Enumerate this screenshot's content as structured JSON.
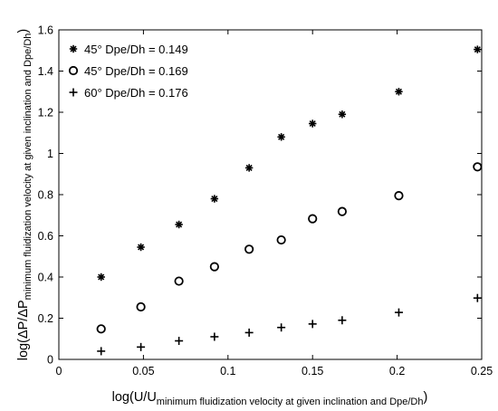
{
  "chart_data": {
    "type": "scatter",
    "xlabel": {
      "main": "log(U/U",
      "sub": "minimum fluidization velocity at given inclination and Dpe/Dh",
      "close": ")"
    },
    "ylabel": {
      "main": "log(ΔP/ΔP",
      "sub": "minimum fluidization velocity at given inclination and Dpe/Dh",
      "close": ")"
    },
    "xlim": [
      0,
      0.25
    ],
    "ylim": [
      0,
      1.6
    ],
    "xticks": [
      0,
      0.05,
      0.1,
      0.15,
      0.2,
      0.25
    ],
    "xtick_labels": [
      "0",
      "0.05",
      "0.1",
      "0.15",
      "0.2",
      "0.25"
    ],
    "yticks": [
      0,
      0.2,
      0.4,
      0.6,
      0.8,
      1,
      1.2,
      1.4,
      1.6
    ],
    "ytick_labels": [
      "0",
      "0.2",
      "0.4",
      "0.6",
      "0.8",
      "1",
      "1.2",
      "1.4",
      "1.6"
    ],
    "grid": false,
    "legend_position": "top-left",
    "series": [
      {
        "name": "45° Dpe/Dh = 0.149",
        "marker": "asterisk",
        "color": "#000000",
        "x": [
          0.025,
          0.0485,
          0.071,
          0.092,
          0.1125,
          0.1315,
          0.15,
          0.1675,
          0.201,
          0.2475
        ],
        "y": [
          0.4,
          0.545,
          0.655,
          0.78,
          0.93,
          1.08,
          1.145,
          1.19,
          1.3,
          1.505
        ]
      },
      {
        "name": "45° Dpe/Dh = 0.169",
        "marker": "open-circle",
        "color": "#000000",
        "x": [
          0.025,
          0.0485,
          0.071,
          0.092,
          0.1125,
          0.1315,
          0.15,
          0.1675,
          0.201,
          0.2475
        ],
        "y": [
          0.148,
          0.255,
          0.38,
          0.45,
          0.535,
          0.58,
          0.683,
          0.718,
          0.795,
          0.935
        ]
      },
      {
        "name": "60° Dpe/Dh = 0.176",
        "marker": "plus",
        "color": "#000000",
        "x": [
          0.025,
          0.0485,
          0.071,
          0.092,
          0.1125,
          0.1315,
          0.15,
          0.1675,
          0.201,
          0.2475
        ],
        "y": [
          0.04,
          0.06,
          0.09,
          0.11,
          0.13,
          0.155,
          0.172,
          0.19,
          0.228,
          0.298
        ]
      }
    ]
  }
}
